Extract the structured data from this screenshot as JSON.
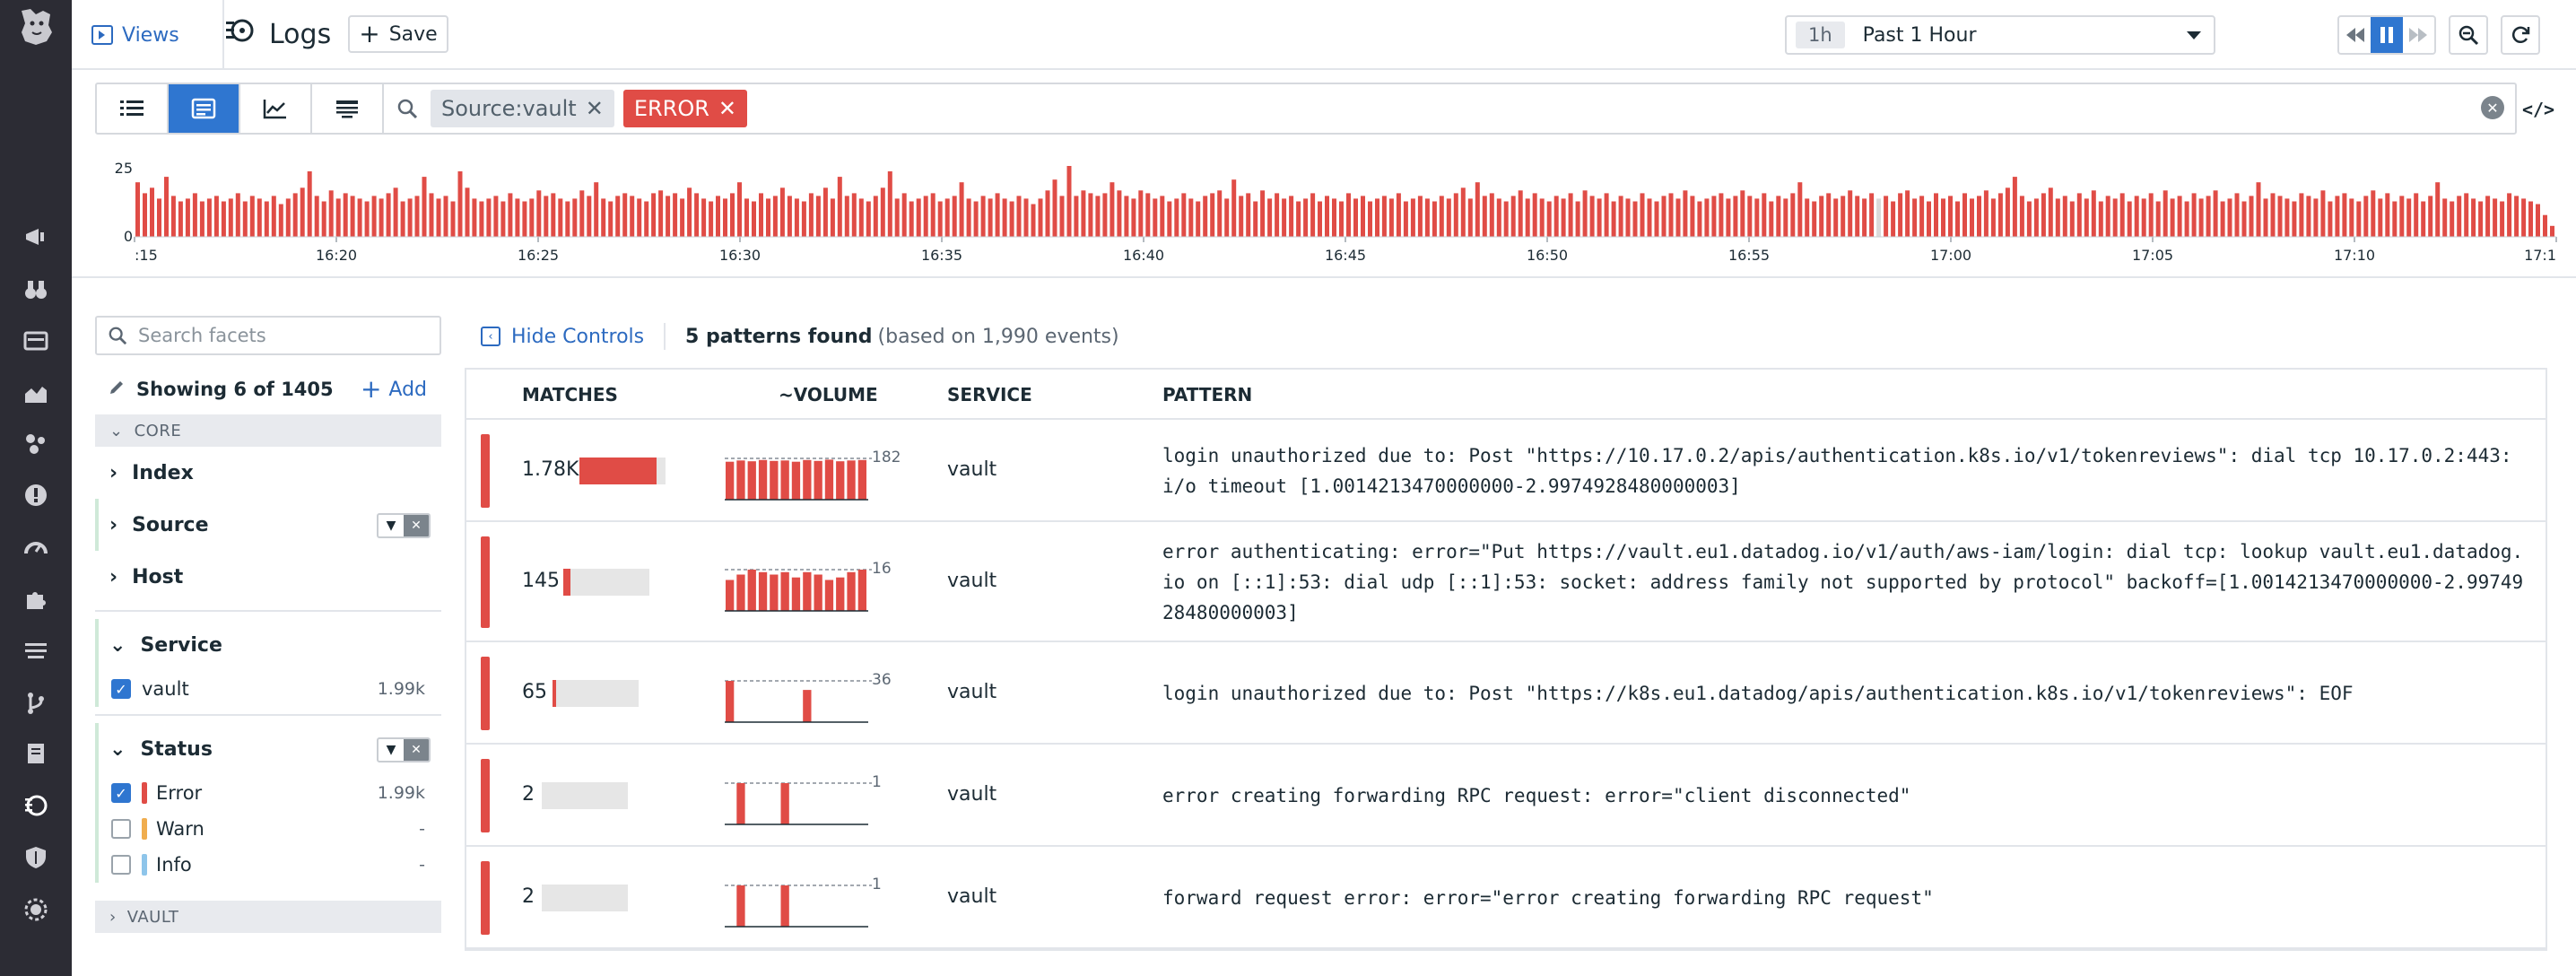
{
  "header": {
    "views_label": "Views",
    "page_title": "Logs",
    "save_label": "Save",
    "time_chip": "1h",
    "time_range": "Past 1 Hour"
  },
  "search": {
    "tags": [
      {
        "label": "Source:vault",
        "kind": "source"
      },
      {
        "label": "ERROR",
        "kind": "error"
      }
    ]
  },
  "histogram": {
    "y_ticks": [
      "25",
      "0"
    ],
    "x_ticks": [
      ":15",
      "16:20",
      "16:25",
      "16:30",
      "16:35",
      "16:40",
      "16:45",
      "16:50",
      "16:55",
      "17:00",
      "17:05",
      "17:10",
      "17:1"
    ],
    "values": [
      20,
      16,
      18,
      14,
      22,
      15,
      13,
      14,
      16,
      13,
      14,
      15,
      13,
      14,
      16,
      13,
      15,
      14,
      13,
      15,
      12,
      14,
      16,
      18,
      24,
      15,
      13,
      17,
      14,
      16,
      15,
      14,
      13,
      15,
      14,
      16,
      18,
      13,
      14,
      15,
      22,
      16,
      14,
      15,
      13,
      24,
      18,
      14,
      13,
      14,
      15,
      13,
      16,
      14,
      13,
      14,
      17,
      15,
      16,
      14,
      13,
      14,
      17,
      15,
      20,
      14,
      13,
      15,
      16,
      15,
      14,
      13,
      16,
      17,
      15,
      16,
      14,
      18,
      16,
      14,
      13,
      15,
      14,
      16,
      20,
      14,
      13,
      16,
      14,
      15,
      18,
      15,
      14,
      13,
      16,
      15,
      18,
      14,
      22,
      15,
      16,
      14,
      13,
      15,
      18,
      24,
      14,
      16,
      13,
      14,
      15,
      16,
      13,
      14,
      15,
      20,
      14,
      13,
      15,
      14,
      16,
      14,
      13,
      15,
      14,
      12,
      14,
      17,
      21,
      15,
      26,
      15,
      17,
      16,
      15,
      16,
      20,
      17,
      15,
      14,
      17,
      16,
      14,
      15,
      13,
      14,
      16,
      14,
      13,
      15,
      16,
      17,
      14,
      21,
      15,
      16,
      13,
      17,
      14,
      16,
      14,
      15,
      13,
      14,
      16,
      13,
      15,
      14,
      13,
      16,
      14,
      15,
      13,
      14,
      15,
      14,
      16,
      13,
      14,
      15,
      14,
      13,
      15,
      14,
      16,
      18,
      14,
      20,
      15,
      16,
      14,
      13,
      15,
      17,
      14,
      16,
      14,
      13,
      15,
      14,
      16,
      13,
      17,
      15,
      14,
      16,
      13,
      15,
      14,
      13,
      16,
      14,
      13,
      15,
      16,
      14,
      17,
      15,
      13,
      14,
      15,
      16,
      14,
      15,
      17,
      15,
      14,
      16,
      13,
      15,
      14,
      16,
      20,
      14,
      13,
      15,
      16,
      14,
      15,
      17,
      15,
      14,
      16,
      14,
      15,
      13,
      16,
      17,
      14,
      15,
      13,
      16,
      14,
      15,
      13,
      16,
      14,
      15,
      17,
      14,
      16,
      18,
      22,
      15,
      13,
      14,
      16,
      18,
      14,
      15,
      13,
      16,
      14,
      17,
      13,
      15,
      14,
      16,
      13,
      15,
      14,
      16,
      13,
      17,
      14,
      15,
      13,
      16,
      14,
      15,
      17,
      13,
      14,
      16,
      13,
      15,
      20,
      14,
      16,
      15,
      14,
      13,
      16,
      15,
      14,
      17,
      13,
      15,
      16,
      14,
      13,
      15,
      17,
      14,
      16,
      13,
      15,
      14,
      16,
      13,
      15,
      20,
      14,
      13,
      15,
      16,
      14,
      13,
      15,
      14,
      13,
      16,
      15,
      14,
      13,
      12,
      8,
      4
    ],
    "highlight_index": 243
  },
  "facets": {
    "search_placeholder": "Search facets",
    "showing_label": "Showing 6 of 1405",
    "add_label": "Add",
    "core_label": "CORE",
    "index_label": "Index",
    "source_label": "Source",
    "host_label": "Host",
    "service_label": "Service",
    "service_value": "vault",
    "service_count": "1.99k",
    "status_label": "Status",
    "status_values": [
      {
        "label": "Error",
        "count": "1.99k",
        "checked": true,
        "color": "#e04c46"
      },
      {
        "label": "Warn",
        "count": "-",
        "checked": false,
        "color": "#f0ad4e"
      },
      {
        "label": "Info",
        "count": "-",
        "checked": false,
        "color": "#8ec5ea"
      }
    ],
    "vault_label": "VAULT"
  },
  "controls": {
    "hide_label": "Hide Controls",
    "found_label": "5 patterns found",
    "found_sub": "(based on 1,990 events)"
  },
  "table": {
    "headers": {
      "matches": "MATCHES",
      "volume": "~VOLUME",
      "service": "SERVICE",
      "pattern": "PATTERN"
    },
    "rows": [
      {
        "count": "1.78K",
        "match_fraction": 0.9,
        "vol_max_label": "182",
        "vol_bars": [
          0.92,
          0.95,
          0.93,
          0.96,
          0.94,
          0.95,
          0.92,
          0.96,
          0.94,
          0.97,
          0.93,
          0.95,
          0.96
        ],
        "service": "vault",
        "pattern": "login unauthorized due to: Post \"https://10.17.0.2/apis/authentication.k8s.io/v1/tokenreviews\": dial tcp 10.17.0.2:443: i/o timeout [1.0014213470000000-2.9974928480000003]"
      },
      {
        "count": "145",
        "match_fraction": 0.08,
        "vol_max_label": "16",
        "vol_bars": [
          0.75,
          0.88,
          1.0,
          0.94,
          0.88,
          0.94,
          0.81,
          0.94,
          0.88,
          0.75,
          0.81,
          0.94,
          1.0
        ],
        "service": "vault",
        "pattern": "error authenticating: error=\"Put https://vault.eu1.datadog.io/v1/auth/aws-iam/login: dial tcp: lookup vault.eu1.datadog.io on [::1]:53: dial udp [::1]:53: socket: address family not supported by protocol\" backoff=[1.0014213470000000-2.9974928480000003]"
      },
      {
        "count": "65",
        "match_fraction": 0.04,
        "vol_max_label": "36",
        "vol_bars": [
          1.0,
          0,
          0,
          0,
          0,
          0,
          0,
          0.78,
          0,
          0,
          0,
          0,
          0
        ],
        "service": "vault",
        "pattern": "login unauthorized due to: Post \"https://k8s.eu1.datadog/apis/authentication.k8s.io/v1/tokenreviews\": EOF"
      },
      {
        "count": "2",
        "match_fraction": 0.0,
        "vol_max_label": "1",
        "vol_bars": [
          0,
          1.0,
          0,
          0,
          0,
          1.0,
          0,
          0,
          0,
          0,
          0,
          0,
          0
        ],
        "service": "vault",
        "pattern": "error creating forwarding RPC request: error=\"client disconnected\""
      },
      {
        "count": "2",
        "match_fraction": 0.0,
        "vol_max_label": "1",
        "vol_bars": [
          0,
          1.0,
          0,
          0,
          0,
          1.0,
          0,
          0,
          0,
          0,
          0,
          0,
          0
        ],
        "service": "vault",
        "pattern": "forward request error: error=\"error creating forwarding RPC request\""
      }
    ]
  },
  "colors": {
    "accent": "#2f76d0",
    "error": "#e04c46",
    "nav_bg": "#2c2c34"
  }
}
